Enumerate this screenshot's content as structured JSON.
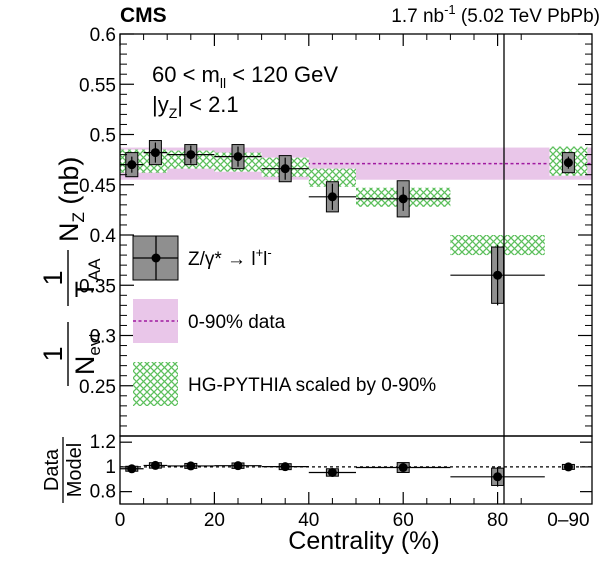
{
  "header": {
    "experiment": "CMS",
    "lumi_value": "1.7 nb",
    "lumi_exp": "-1",
    "lumi_rest": " (5.02 TeV PbPb)"
  },
  "annotations": {
    "mass_pre": "60 < m",
    "mass_sub": "ll",
    "mass_post": " < 120 GeV",
    "rap_pre": "|y",
    "rap_sub": "Z",
    "rap_post": "| < 2.1"
  },
  "colors": {
    "data_box": "#8f8f8f",
    "band_fill": "#e9c6e9",
    "band_line": "#a01aa0",
    "model_hatch": "#5cc05c",
    "marker": "#000000"
  },
  "chart_data": [
    {
      "type": "scatter",
      "panel": "main",
      "xlabel": "Centrality (%)",
      "ylabel": {
        "t1": "1",
        "t2": "N",
        "t2_sub": "evt",
        "t3": "1",
        "t4": "T",
        "t4_sub": "AA",
        "t5": "N",
        "t5_sub": "Z",
        "t6": " (nb)"
      },
      "xlim": [
        0,
        100
      ],
      "ylim": [
        0.2,
        0.6
      ],
      "x_ticks": [
        "0",
        "20",
        "40",
        "60",
        "80",
        "0–90"
      ],
      "y_ticks": [
        {
          "v": 0.25,
          "label": "0.25"
        },
        {
          "v": 0.3,
          "label": "0.3"
        },
        {
          "v": 0.35,
          "label": "0.35"
        },
        {
          "v": 0.4,
          "label": "0.4"
        },
        {
          "v": 0.45,
          "label": "0.45"
        },
        {
          "v": 0.5,
          "label": "0.5"
        },
        {
          "v": 0.55,
          "label": "0.55"
        },
        {
          "v": 0.6,
          "label": "0.6"
        }
      ],
      "band": {
        "y": 0.471,
        "lo": 0.455,
        "hi": 0.487
      },
      "series": [
        {
          "name": "Z/γ* → l⁺l⁻",
          "points": [
            {
              "x": 2.5,
              "xlo": 0,
              "xhi": 5,
              "y": 0.47,
              "stat": 0.008,
              "syst": 0.012
            },
            {
              "x": 7.5,
              "xlo": 5,
              "xhi": 10,
              "y": 0.482,
              "stat": 0.01,
              "syst": 0.012
            },
            {
              "x": 15,
              "xlo": 10,
              "xhi": 20,
              "y": 0.48,
              "stat": 0.009,
              "syst": 0.01
            },
            {
              "x": 25,
              "xlo": 20,
              "xhi": 30,
              "y": 0.478,
              "stat": 0.01,
              "syst": 0.012
            },
            {
              "x": 35,
              "xlo": 30,
              "xhi": 40,
              "y": 0.466,
              "stat": 0.011,
              "syst": 0.013
            },
            {
              "x": 45,
              "xlo": 40,
              "xhi": 50,
              "y": 0.438,
              "stat": 0.013,
              "syst": 0.015
            },
            {
              "x": 60,
              "xlo": 50,
              "xhi": 70,
              "y": 0.436,
              "stat": 0.012,
              "syst": 0.018
            },
            {
              "x": 80,
              "xlo": 70,
              "xhi": 90,
              "y": 0.36,
              "stat": 0.03,
              "syst": 0.028
            },
            {
              "x": 95,
              "xlo": 95,
              "xhi": 95,
              "y": 0.472,
              "stat": 0.006,
              "syst": 0.01
            }
          ]
        },
        {
          "name": "HG-PYTHIA scaled by 0-90%",
          "boxes": [
            {
              "xlo": 0,
              "xhi": 10,
              "ylo": 0.462,
              "yhi": 0.485
            },
            {
              "xlo": 10,
              "xhi": 20,
              "ylo": 0.466,
              "yhi": 0.484
            },
            {
              "xlo": 20,
              "xhi": 30,
              "ylo": 0.463,
              "yhi": 0.482
            },
            {
              "xlo": 30,
              "xhi": 40,
              "ylo": 0.458,
              "yhi": 0.477
            },
            {
              "xlo": 40,
              "xhi": 50,
              "ylo": 0.448,
              "yhi": 0.466
            },
            {
              "xlo": 50,
              "xhi": 70,
              "ylo": 0.428,
              "yhi": 0.447
            },
            {
              "xlo": 70,
              "xhi": 90,
              "ylo": 0.38,
              "yhi": 0.4
            },
            {
              "xlo": 91,
              "xhi": 99,
              "ylo": 0.459,
              "yhi": 0.488
            }
          ]
        }
      ],
      "legend": {
        "placement": "lower-left",
        "entries": [
          {
            "kind": "data",
            "label_pre": "Z/γ* → l",
            "sup1": "+",
            "mid": "l",
            "sup2": "-"
          },
          {
            "kind": "band",
            "label": "0-90% data"
          },
          {
            "kind": "hatch",
            "label": "HG-PYTHIA scaled by 0-90%"
          }
        ]
      }
    },
    {
      "type": "scatter",
      "panel": "ratio",
      "ylabel_num": "Data",
      "ylabel_den": "Model",
      "xlim": [
        0,
        100
      ],
      "ylim": [
        0.7,
        1.25
      ],
      "y_ticks": [
        {
          "v": 0.8,
          "label": "0.8"
        },
        {
          "v": 1.0,
          "label": "1"
        },
        {
          "v": 1.2,
          "label": "1.2"
        }
      ],
      "reference": 1.0,
      "points": [
        {
          "x": 2.5,
          "xlo": 0,
          "xhi": 5,
          "y": 0.985,
          "stat": 0.01,
          "syst": 0.02
        },
        {
          "x": 7.5,
          "xlo": 5,
          "xhi": 10,
          "y": 1.012,
          "stat": 0.012,
          "syst": 0.022
        },
        {
          "x": 15,
          "xlo": 10,
          "xhi": 20,
          "y": 1.008,
          "stat": 0.012,
          "syst": 0.02
        },
        {
          "x": 25,
          "xlo": 20,
          "xhi": 30,
          "y": 1.01,
          "stat": 0.012,
          "syst": 0.022
        },
        {
          "x": 35,
          "xlo": 30,
          "xhi": 40,
          "y": 1.002,
          "stat": 0.012,
          "syst": 0.024
        },
        {
          "x": 45,
          "xlo": 40,
          "xhi": 50,
          "y": 0.955,
          "stat": 0.02,
          "syst": 0.03
        },
        {
          "x": 60,
          "xlo": 50,
          "xhi": 70,
          "y": 0.995,
          "stat": 0.025,
          "syst": 0.04
        },
        {
          "x": 80,
          "xlo": 70,
          "xhi": 90,
          "y": 0.92,
          "stat": 0.08,
          "syst": 0.07
        },
        {
          "x": 95,
          "xlo": 95,
          "xhi": 95,
          "y": 1.0,
          "stat": 0.012,
          "syst": 0.02
        }
      ]
    }
  ]
}
